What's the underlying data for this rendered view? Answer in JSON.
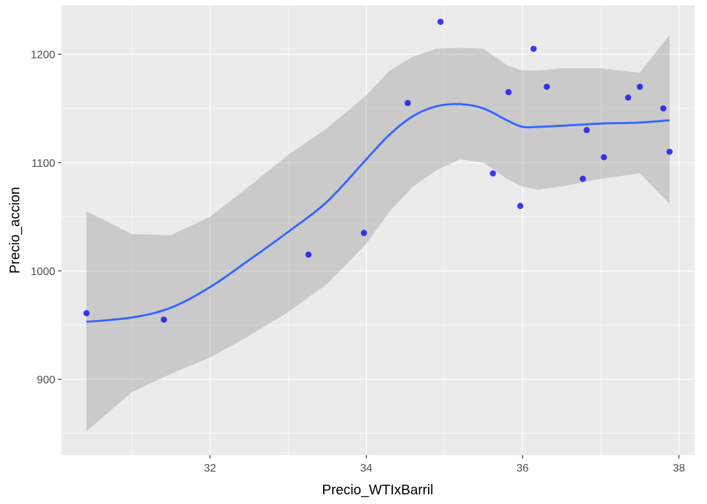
{
  "chart_data": {
    "type": "scatter",
    "xlabel": "Precio_WTIxBarril",
    "ylabel": "Precio_accion",
    "xlim": [
      30.1,
      38.2
    ],
    "ylim": [
      830,
      1245
    ],
    "x_ticks": [
      32,
      34,
      36,
      38
    ],
    "x_minor_ticks": [
      31,
      33,
      35,
      37
    ],
    "y_ticks": [
      900,
      1000,
      1100,
      1200
    ],
    "y_minor_ticks": [
      850,
      950,
      1050,
      1150
    ],
    "grid": true,
    "colors": {
      "panel": "#ebebeb",
      "grid": "#ffffff",
      "points": "#0000ee",
      "smooth_line": "#3366ff",
      "confidence_band": "#999999"
    },
    "points": [
      {
        "x": 30.42,
        "y": 961
      },
      {
        "x": 31.41,
        "y": 955
      },
      {
        "x": 33.26,
        "y": 1015
      },
      {
        "x": 33.97,
        "y": 1035
      },
      {
        "x": 34.53,
        "y": 1155
      },
      {
        "x": 34.95,
        "y": 1230
      },
      {
        "x": 35.62,
        "y": 1090
      },
      {
        "x": 35.82,
        "y": 1165
      },
      {
        "x": 35.97,
        "y": 1060
      },
      {
        "x": 36.14,
        "y": 1205
      },
      {
        "x": 36.31,
        "y": 1170
      },
      {
        "x": 36.77,
        "y": 1085
      },
      {
        "x": 36.82,
        "y": 1130
      },
      {
        "x": 37.04,
        "y": 1105
      },
      {
        "x": 37.35,
        "y": 1160
      },
      {
        "x": 37.5,
        "y": 1170
      },
      {
        "x": 37.8,
        "y": 1150
      },
      {
        "x": 37.88,
        "y": 1110
      }
    ],
    "smooth": {
      "x": [
        30.42,
        31.0,
        31.5,
        32.0,
        32.5,
        33.0,
        33.5,
        34.0,
        34.3,
        34.6,
        34.9,
        35.2,
        35.5,
        35.8,
        36.0,
        36.2,
        36.5,
        37.0,
        37.5,
        37.88
      ],
      "fit": [
        953,
        957,
        966,
        985,
        1010,
        1036,
        1064,
        1103,
        1126,
        1143,
        1152,
        1154,
        1150,
        1139,
        1133,
        1133,
        1134,
        1136,
        1137,
        1139
      ],
      "lower": [
        852,
        888,
        905,
        920,
        940,
        962,
        988,
        1025,
        1055,
        1078,
        1093,
        1103,
        1100,
        1085,
        1078,
        1075,
        1078,
        1085,
        1090,
        1062
      ],
      "upper": [
        1055,
        1034,
        1033,
        1050,
        1078,
        1107,
        1132,
        1162,
        1185,
        1198,
        1205,
        1206,
        1205,
        1190,
        1185,
        1185,
        1187,
        1187,
        1183,
        1218
      ]
    }
  }
}
